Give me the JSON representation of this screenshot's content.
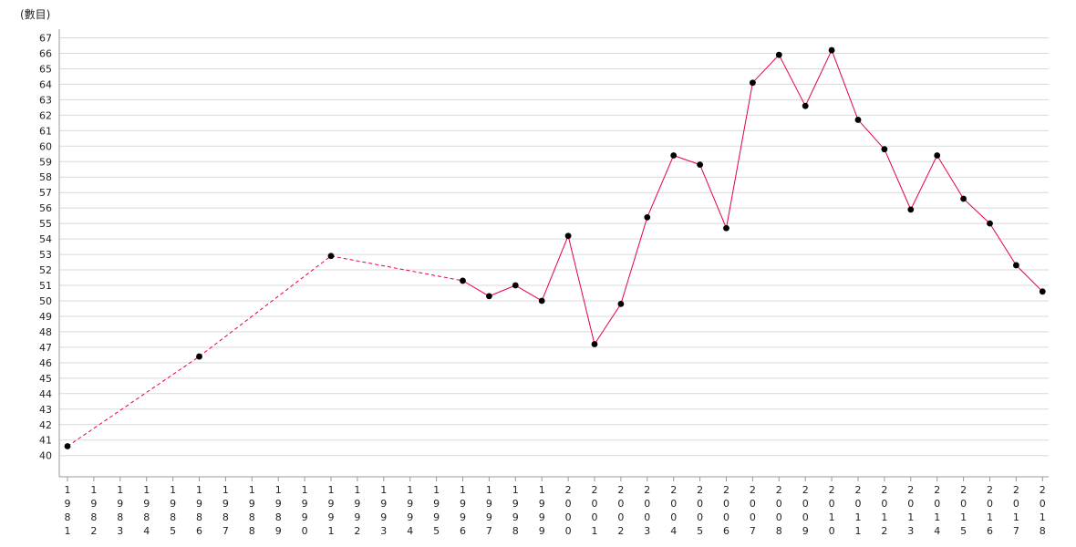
{
  "chart_data": {
    "type": "line",
    "y_unit_label": "(數目)",
    "ylim": [
      39,
      68
    ],
    "y_ticks": [
      40,
      41,
      42,
      43,
      44,
      45,
      46,
      47,
      48,
      49,
      50,
      51,
      52,
      53,
      54,
      55,
      56,
      57,
      58,
      59,
      60,
      61,
      62,
      63,
      64,
      65,
      66,
      67
    ],
    "grid": true,
    "categories": [
      "1981",
      "1982",
      "1983",
      "1984",
      "1985",
      "1986",
      "1987",
      "1988",
      "1989",
      "1990",
      "1991",
      "1992",
      "1993",
      "1994",
      "1995",
      "1996",
      "1997",
      "1998",
      "1999",
      "2000",
      "2001",
      "2002",
      "2003",
      "2004",
      "2005",
      "2006",
      "2007",
      "2008",
      "2009",
      "2010",
      "2011",
      "2012",
      "2013",
      "2014",
      "2015",
      "2016",
      "2017",
      "2018"
    ],
    "points": [
      {
        "x": "1981",
        "y": 40.6
      },
      {
        "x": "1986",
        "y": 46.4
      },
      {
        "x": "1991",
        "y": 52.9
      },
      {
        "x": "1996",
        "y": 51.3
      },
      {
        "x": "1997",
        "y": 50.3
      },
      {
        "x": "1998",
        "y": 51.0
      },
      {
        "x": "1999",
        "y": 50.0
      },
      {
        "x": "2000",
        "y": 54.2
      },
      {
        "x": "2001",
        "y": 47.2
      },
      {
        "x": "2002",
        "y": 49.8
      },
      {
        "x": "2003",
        "y": 55.4
      },
      {
        "x": "2004",
        "y": 59.4
      },
      {
        "x": "2005",
        "y": 58.8
      },
      {
        "x": "2006",
        "y": 54.7
      },
      {
        "x": "2007",
        "y": 64.1
      },
      {
        "x": "2008",
        "y": 65.9
      },
      {
        "x": "2009",
        "y": 62.6
      },
      {
        "x": "2010",
        "y": 66.2
      },
      {
        "x": "2011",
        "y": 61.7
      },
      {
        "x": "2012",
        "y": 59.8
      },
      {
        "x": "2013",
        "y": 55.9
      },
      {
        "x": "2014",
        "y": 59.4
      },
      {
        "x": "2015",
        "y": 56.6
      },
      {
        "x": "2016",
        "y": 55.0
      },
      {
        "x": "2017",
        "y": 52.3
      },
      {
        "x": "2018",
        "y": 50.6
      }
    ],
    "line_color": "#e8003d",
    "point_color": "#000000",
    "grid_color": "#d9d9d9",
    "axis_color": "#999999",
    "dashed_until": "1996"
  }
}
